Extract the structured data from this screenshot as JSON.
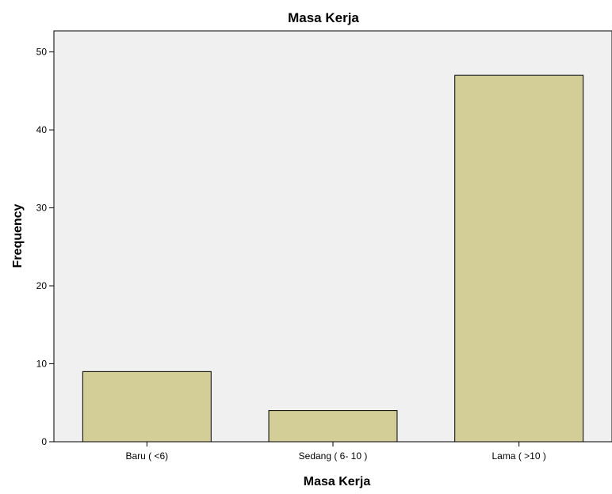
{
  "chart_data": {
    "type": "bar",
    "title": "Masa Kerja",
    "xlabel": "Masa Kerja",
    "ylabel": "Frequency",
    "categories": [
      "Baru ( <6)",
      "Sedang ( 6- 10 )",
      "Lama ( >10 )"
    ],
    "values": [
      9,
      4,
      47
    ],
    "ylim": [
      0,
      52.7
    ],
    "yticks": [
      0,
      10,
      20,
      30,
      40,
      50
    ],
    "grid": false,
    "legend": "none",
    "colors": {
      "bar_fill": "#d3ce98",
      "bar_stroke": "#000000",
      "plot_background": "#f0f0f0",
      "axis": "#000000",
      "text": "#000000"
    }
  }
}
